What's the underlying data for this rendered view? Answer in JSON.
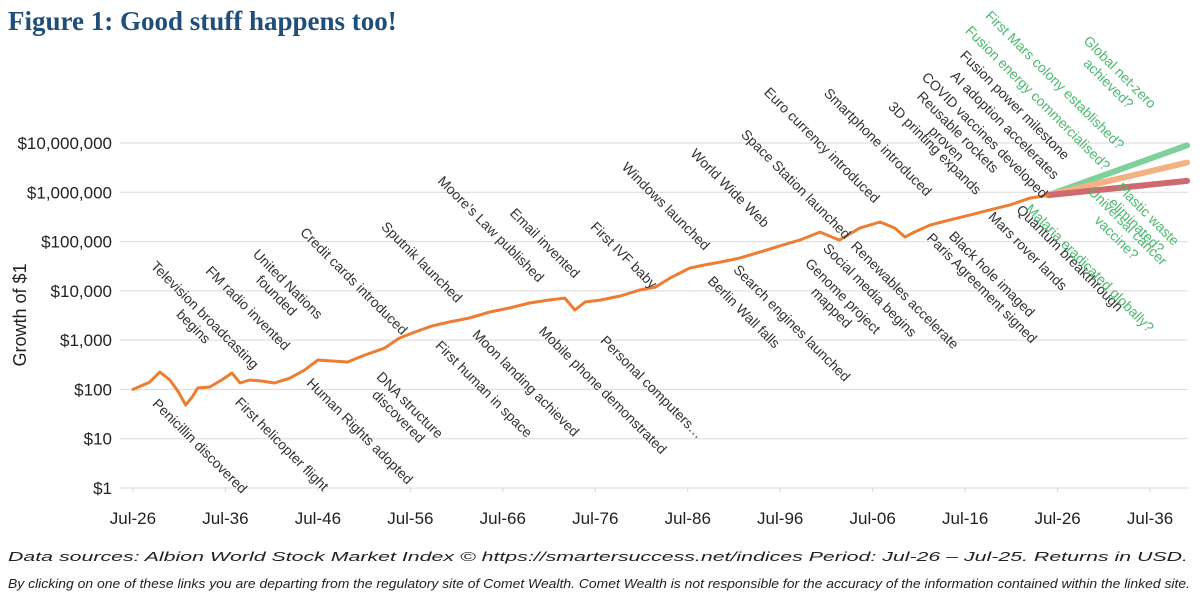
{
  "chart_data": {
    "type": "line",
    "title": "Figure 1: Good stuff happens too!",
    "y_label": "Growth of $1",
    "log_scale": true,
    "grid": true,
    "xlim": [
      1925.1,
      2040.6
    ],
    "ylim": [
      1,
      10000000
    ],
    "xticks": [
      {
        "value": 1926.5,
        "label": "Jul-26"
      },
      {
        "value": 1936.5,
        "label": "Jul-36"
      },
      {
        "value": 1946.5,
        "label": "Jul-46"
      },
      {
        "value": 1956.5,
        "label": "Jul-56"
      },
      {
        "value": 1966.5,
        "label": "Jul-66"
      },
      {
        "value": 1976.5,
        "label": "Jul-76"
      },
      {
        "value": 1986.5,
        "label": "Jul-86"
      },
      {
        "value": 1996.5,
        "label": "Jul-96"
      },
      {
        "value": 2006.5,
        "label": "Jul-06"
      },
      {
        "value": 2016.5,
        "label": "Jul-16"
      },
      {
        "value": 2026.5,
        "label": "Jul-26"
      },
      {
        "value": 2036.5,
        "label": "Jul-36"
      }
    ],
    "yticks": [
      {
        "value": 1,
        "label": "$1"
      },
      {
        "value": 10,
        "label": "$10"
      },
      {
        "value": 100,
        "label": "$100"
      },
      {
        "value": 1000,
        "label": "$1,000"
      },
      {
        "value": 10000,
        "label": "$10,000"
      },
      {
        "value": 100000,
        "label": "$100,000"
      },
      {
        "value": 1000000,
        "label": "$1,000,000"
      },
      {
        "value": 10000000,
        "label": "$10,000,000"
      }
    ],
    "series": [
      {
        "color": "#ed7d31",
        "width": 3,
        "x": [
          1926.5,
          1928.3,
          1929.4,
          1930.5,
          1931.4,
          1932.2,
          1932.9,
          1933.5,
          1934.8,
          1936.1,
          1937.2,
          1938.1,
          1939.1,
          1940.4,
          1941.8,
          1943.5,
          1945.1,
          1946.5,
          1948,
          1949.7,
          1951.6,
          1953.7,
          1955.3,
          1957,
          1958.8,
          1960.7,
          1962.9,
          1965.1,
          1967.2,
          1969.4,
          1971.4,
          1973.2,
          1974.3,
          1975.4,
          1977,
          1979.2,
          1981.3,
          1983,
          1984.6,
          1986.7,
          1988.3,
          1990,
          1992.1,
          1994.3,
          1996.4,
          1998.6,
          2000.8,
          2002.9,
          2005.1,
          2007.3,
          2008.9,
          2010,
          2011,
          2012.7,
          2014.8,
          2017,
          2019.1,
          2021.3,
          2023.5,
          2025.5
        ],
        "values": [
          100,
          140,
          225,
          155,
          90,
          48,
          70,
          107,
          112,
          155,
          215,
          135,
          155,
          148,
          135,
          170,
          250,
          395,
          377,
          360,
          500,
          690,
          1100,
          1460,
          1930,
          2330,
          2810,
          3720,
          4480,
          5660,
          6500,
          7140,
          4080,
          5930,
          6500,
          7850,
          10400,
          11900,
          18200,
          29000,
          33400,
          38400,
          46300,
          61200,
          81100,
          107000,
          156000,
          107000,
          188000,
          249000,
          188000,
          123000,
          156000,
          216000,
          273000,
          345000,
          436000,
          550000,
          763000,
          877000
        ]
      },
      {
        "color": "#7fd19c",
        "width": 6,
        "x": [
          2025.5,
          2040.5
        ],
        "values": [
          877000,
          9000000
        ]
      },
      {
        "color": "#f4b183",
        "width": 6,
        "x": [
          2025.5,
          2040.5
        ],
        "values": [
          877000,
          4000000
        ]
      },
      {
        "color": "#cf6b6f",
        "width": 6,
        "x": [
          2025.5,
          2040.5
        ],
        "values": [
          877000,
          1700000
        ]
      }
    ],
    "annotations": {
      "color": "#333333",
      "items": [
        [
          "Television broadcasting",
          "begins"
        ],
        [
          "FM radio invented"
        ],
        [
          "United Nations",
          "founded"
        ],
        [
          "Credit cards introduced"
        ],
        [
          "Sputnik launched"
        ],
        [
          "Moore’s Law published"
        ],
        [
          "Email invented"
        ],
        [
          "First IVF baby"
        ],
        [
          "Windows launched"
        ],
        [
          "World Wide Web"
        ],
        [
          "Space Station launched"
        ],
        [
          "Euro currency introduced"
        ],
        [
          "Smartphone introduced"
        ],
        [
          "3D printing expands"
        ],
        [
          "Reusable rockets",
          "proven"
        ],
        [
          "COVID vaccines developed"
        ],
        [
          "AI adoption accelerates"
        ],
        [
          "Fusion power milestone"
        ],
        [
          "Penicillin discovered"
        ],
        [
          "First helicopter flight"
        ],
        [
          "Human Rights adopted"
        ],
        [
          "DNA structure",
          "discovered"
        ],
        [
          "First human in space"
        ],
        [
          "Moon landing achieved"
        ],
        [
          "Mobile phone demonstrated"
        ],
        [
          "Personal computers…"
        ],
        [
          "Berlin Wall falls"
        ],
        [
          "Search engines launched"
        ],
        [
          "Genome project",
          "mapped"
        ],
        [
          "Social media begins"
        ],
        [
          "Renewables accelerate"
        ],
        [
          "Paris Agreement signed"
        ],
        [
          "Black hole imaged"
        ],
        [
          "Quantum breakthrough"
        ],
        [
          "Mars rover lands"
        ]
      ]
    },
    "projection_annotations": {
      "color": "#4cb870",
      "items": [
        [
          "First Mars colony established?"
        ],
        [
          "Fusion energy commercialised?"
        ],
        [
          "Global net-zero",
          "achieved?"
        ],
        [
          "Plastic waste",
          "eliminated?"
        ],
        [
          "Universal cancer",
          "vaccine?"
        ],
        [
          "Malaria eradicated globally?"
        ]
      ]
    },
    "footnotes": [
      "Data sources: Albion World Stock Market Index © https://smartersuccess.net/indices Period: Jul-26 – Jul-25. Returns in USD.",
      "By clicking on one of these links you are departing from the regulatory site of Comet Wealth. Comet Wealth is not responsible for the accuracy of the information contained within the linked site."
    ]
  }
}
